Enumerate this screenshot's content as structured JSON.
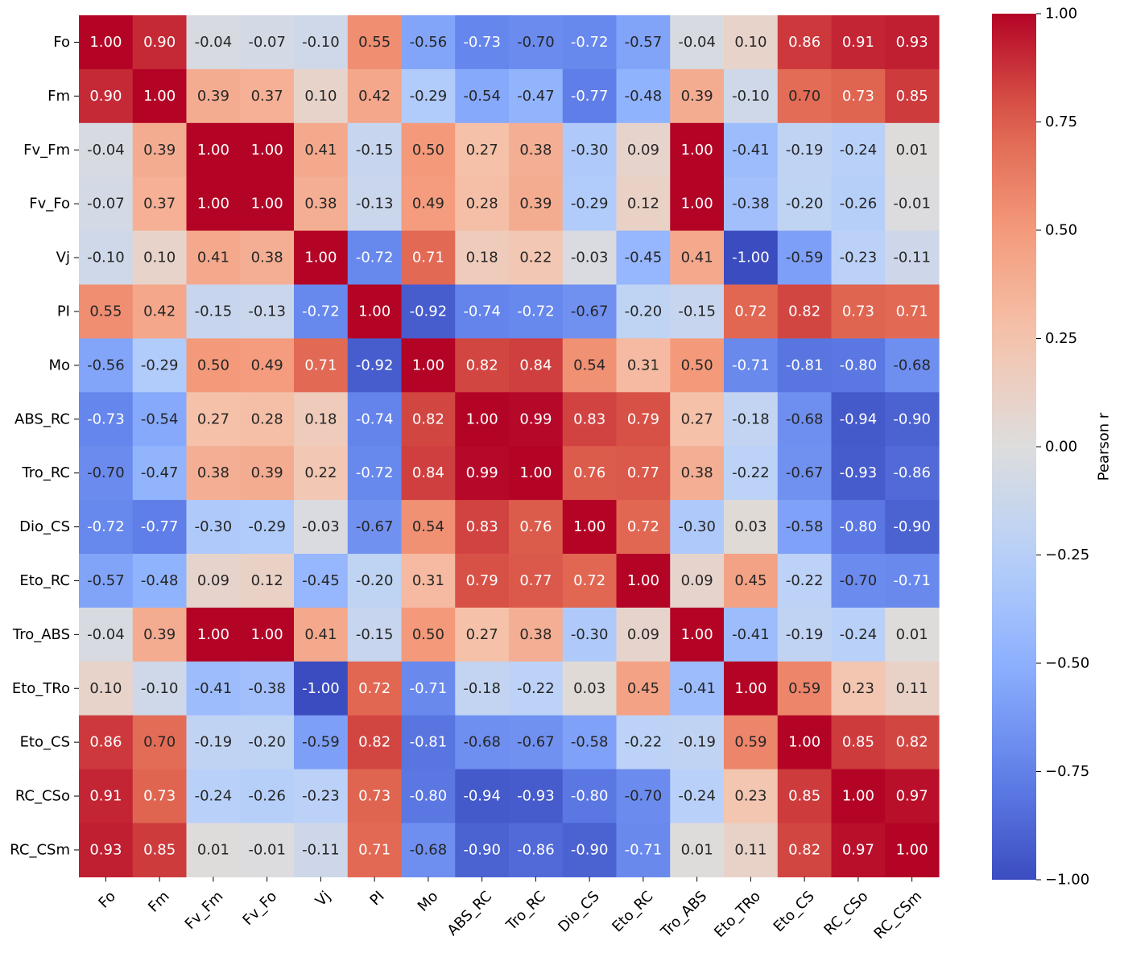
{
  "chart_data": {
    "type": "heatmap",
    "title": "",
    "xlabel": "",
    "ylabel": "",
    "row_labels": [
      "Fo",
      "Fm",
      "Fv_Fm",
      "Fv_Fo",
      "Vj",
      "PI",
      "Mo",
      "ABS_RC",
      "Tro_RC",
      "Dio_CS",
      "Eto_RC",
      "Tro_ABS",
      "Eto_TRo",
      "Eto_CS",
      "RC_CSo",
      "RC_CSm"
    ],
    "col_labels": [
      "Fo",
      "Fm",
      "Fv_Fm",
      "Fv_Fo",
      "Vj",
      "PI",
      "Mo",
      "ABS_RC",
      "Tro_RC",
      "Dio_CS",
      "Eto_RC",
      "Tro_ABS",
      "Eto_TRo",
      "Eto_CS",
      "RC_CSo",
      "RC_CSm"
    ],
    "values": [
      [
        1.0,
        0.9,
        -0.04,
        -0.07,
        -0.1,
        0.55,
        -0.56,
        -0.73,
        -0.7,
        -0.72,
        -0.57,
        -0.04,
        0.1,
        0.86,
        0.91,
        0.93
      ],
      [
        0.9,
        1.0,
        0.39,
        0.37,
        0.1,
        0.42,
        -0.29,
        -0.54,
        -0.47,
        -0.77,
        -0.48,
        0.39,
        -0.1,
        0.7,
        0.73,
        0.85
      ],
      [
        -0.04,
        0.39,
        1.0,
        1.0,
        0.41,
        -0.15,
        0.5,
        0.27,
        0.38,
        -0.3,
        0.09,
        1.0,
        -0.41,
        -0.19,
        -0.24,
        0.01
      ],
      [
        -0.07,
        0.37,
        1.0,
        1.0,
        0.38,
        -0.13,
        0.49,
        0.28,
        0.39,
        -0.29,
        0.12,
        1.0,
        -0.38,
        -0.2,
        -0.26,
        -0.01
      ],
      [
        -0.1,
        0.1,
        0.41,
        0.38,
        1.0,
        -0.72,
        0.71,
        0.18,
        0.22,
        -0.03,
        -0.45,
        0.41,
        -1.0,
        -0.59,
        -0.23,
        -0.11
      ],
      [
        0.55,
        0.42,
        -0.15,
        -0.13,
        -0.72,
        1.0,
        -0.92,
        -0.74,
        -0.72,
        -0.67,
        -0.2,
        -0.15,
        0.72,
        0.82,
        0.73,
        0.71
      ],
      [
        -0.56,
        -0.29,
        0.5,
        0.49,
        0.71,
        -0.92,
        1.0,
        0.82,
        0.84,
        0.54,
        0.31,
        0.5,
        -0.71,
        -0.81,
        -0.8,
        -0.68
      ],
      [
        -0.73,
        -0.54,
        0.27,
        0.28,
        0.18,
        -0.74,
        0.82,
        1.0,
        0.99,
        0.83,
        0.79,
        0.27,
        -0.18,
        -0.68,
        -0.94,
        -0.9
      ],
      [
        -0.7,
        -0.47,
        0.38,
        0.39,
        0.22,
        -0.72,
        0.84,
        0.99,
        1.0,
        0.76,
        0.77,
        0.38,
        -0.22,
        -0.67,
        -0.93,
        -0.86
      ],
      [
        -0.72,
        -0.77,
        -0.3,
        -0.29,
        -0.03,
        -0.67,
        0.54,
        0.83,
        0.76,
        1.0,
        0.72,
        -0.3,
        0.03,
        -0.58,
        -0.8,
        -0.9
      ],
      [
        -0.57,
        -0.48,
        0.09,
        0.12,
        -0.45,
        -0.2,
        0.31,
        0.79,
        0.77,
        0.72,
        1.0,
        0.09,
        0.45,
        -0.22,
        -0.7,
        -0.71
      ],
      [
        -0.04,
        0.39,
        1.0,
        1.0,
        0.41,
        -0.15,
        0.5,
        0.27,
        0.38,
        -0.3,
        0.09,
        1.0,
        -0.41,
        -0.19,
        -0.24,
        0.01
      ],
      [
        0.1,
        -0.1,
        -0.41,
        -0.38,
        -1.0,
        0.72,
        -0.71,
        -0.18,
        -0.22,
        0.03,
        0.45,
        -0.41,
        1.0,
        0.59,
        0.23,
        0.11
      ],
      [
        0.86,
        0.7,
        -0.19,
        -0.2,
        -0.59,
        0.82,
        -0.81,
        -0.68,
        -0.67,
        -0.58,
        -0.22,
        -0.19,
        0.59,
        1.0,
        0.85,
        0.82
      ],
      [
        0.91,
        0.73,
        -0.24,
        -0.26,
        -0.23,
        0.73,
        -0.8,
        -0.94,
        -0.93,
        -0.8,
        -0.7,
        -0.24,
        0.23,
        0.85,
        1.0,
        0.97
      ],
      [
        0.93,
        0.85,
        0.01,
        -0.01,
        -0.11,
        0.71,
        -0.68,
        -0.9,
        -0.86,
        -0.9,
        -0.71,
        0.01,
        0.11,
        0.82,
        0.97,
        1.0
      ]
    ],
    "vmin": -1.0,
    "vmax": 1.0,
    "colormap": "coolwarm",
    "colorbar": {
      "label": "Pearson r",
      "ticks": [
        1.0,
        0.75,
        0.5,
        0.25,
        0.0,
        -0.25,
        -0.5,
        -0.75,
        -1.0
      ],
      "tick_labels": [
        "1.00",
        "0.75",
        "0.50",
        "0.25",
        "0.00",
        "−0.25",
        "−0.50",
        "−0.75",
        "−1.00"
      ]
    },
    "annotation_format": "2 decimals"
  }
}
